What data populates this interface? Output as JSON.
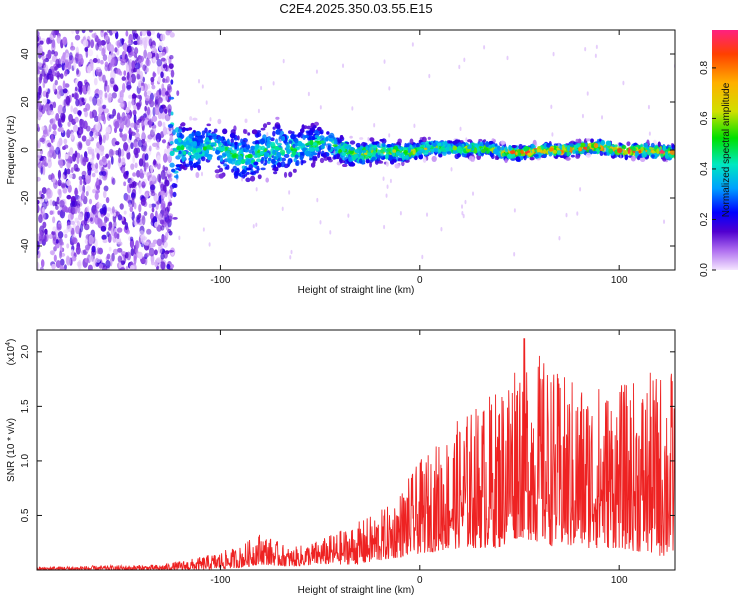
{
  "title": "C2E4.2025.350.03.55.E15",
  "chart_data": [
    {
      "type": "heatmap",
      "title": "C2E4.2025.350.03.55.E15",
      "xlabel": "Height of straight line (km)",
      "ylabel": "Frequency (Hz)",
      "xlim": [
        -192,
        128
      ],
      "ylim": [
        -50,
        50
      ],
      "x_ticks": [
        -100,
        0,
        100
      ],
      "y_ticks": [
        -40,
        -20,
        0,
        20,
        40
      ],
      "grid": false,
      "colorbar": {
        "label": "Normalized spectral amplitude",
        "range": [
          0.0,
          0.95
        ],
        "ticks": [
          0.0,
          0.2,
          0.4,
          0.6,
          0.8
        ],
        "colormap": [
          "#f5e6ff",
          "#b070f0",
          "#5000d0",
          "#0000ff",
          "#00a0ff",
          "#00e8c0",
          "#00e000",
          "#d0e000",
          "#ffb000",
          "#ff4000",
          "#ff2080"
        ]
      },
      "series_description_values": {
        "center_frequency_hz": 0,
        "band_halfwidth_hz": [
          {
            "x": -190,
            "halfwidth": 50
          },
          {
            "x": -125,
            "halfwidth": 50
          },
          {
            "x": -120,
            "halfwidth": 10
          },
          {
            "x": -70,
            "halfwidth": 12
          },
          {
            "x": -40,
            "halfwidth": 6
          },
          {
            "x": 0,
            "halfwidth": 4
          },
          {
            "x": 60,
            "halfwidth": 3
          },
          {
            "x": 128,
            "halfwidth": 3
          }
        ]
      }
    },
    {
      "type": "line",
      "xlabel": "Height of straight line (km)",
      "ylabel": "SNR (10 * v/v)",
      "multiplier": "(x10",
      "multiplier_exp": "4",
      "xlim": [
        -192,
        128
      ],
      "ylim": [
        0,
        2.2
      ],
      "x_ticks": [
        -100,
        0,
        100
      ],
      "y_ticks": [
        "0.5",
        "1.0",
        "1.5",
        "2.0"
      ],
      "grid": false,
      "series": [
        {
          "color": "#ee2222",
          "envelope": [
            {
              "x": -192,
              "min": 0.0,
              "max": 0.03
            },
            {
              "x": -130,
              "min": 0.0,
              "max": 0.05
            },
            {
              "x": -110,
              "min": 0.0,
              "max": 0.12
            },
            {
              "x": -90,
              "min": 0.02,
              "max": 0.22
            },
            {
              "x": -80,
              "min": 0.05,
              "max": 0.35
            },
            {
              "x": -65,
              "min": 0.03,
              "max": 0.2
            },
            {
              "x": -50,
              "min": 0.05,
              "max": 0.28
            },
            {
              "x": -30,
              "min": 0.05,
              "max": 0.45
            },
            {
              "x": -15,
              "min": 0.1,
              "max": 0.6
            },
            {
              "x": 0,
              "min": 0.15,
              "max": 1.0
            },
            {
              "x": 20,
              "min": 0.2,
              "max": 1.4
            },
            {
              "x": 40,
              "min": 0.2,
              "max": 1.7
            },
            {
              "x": 50,
              "min": 0.3,
              "max": 2.2
            },
            {
              "x": 70,
              "min": 0.2,
              "max": 1.8
            },
            {
              "x": 100,
              "min": 0.2,
              "max": 1.7
            },
            {
              "x": 128,
              "min": 0.1,
              "max": 1.9
            }
          ]
        }
      ]
    }
  ]
}
